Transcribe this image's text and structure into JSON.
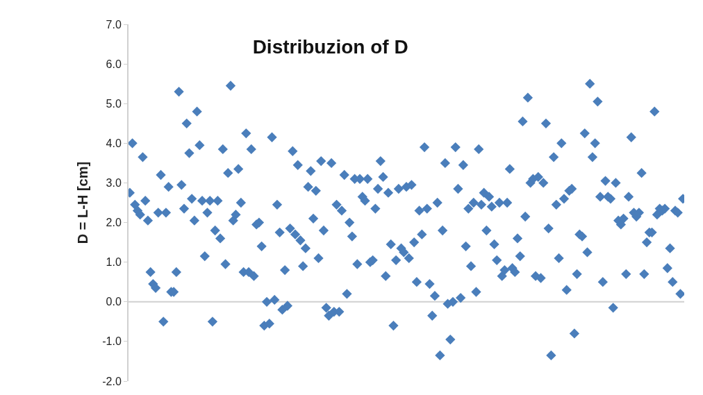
{
  "chart_data": {
    "type": "scatter",
    "title": "Distribuzion of D",
    "ylabel": "D = L-H [cm]",
    "categories": [
      null,
      null,
      null,
      null,
      null,
      null,
      null,
      null,
      null,
      null,
      null,
      null,
      null,
      null,
      null,
      null,
      null,
      null,
      null,
      null,
      null,
      null,
      null,
      null,
      null,
      null,
      null,
      null,
      null,
      null,
      null,
      null,
      null,
      null,
      null,
      null,
      null,
      null,
      null,
      null,
      null,
      null,
      null,
      null,
      null,
      null,
      null,
      null,
      null,
      null,
      null,
      null,
      null,
      null,
      null,
      null,
      null,
      null,
      null,
      null,
      null,
      null,
      null,
      null,
      null,
      null,
      null,
      null,
      null,
      null,
      null,
      null,
      null,
      null,
      null,
      null,
      null,
      null,
      null,
      null,
      null,
      null,
      null,
      null,
      null,
      null,
      null,
      null,
      null,
      null,
      null,
      null,
      null,
      null,
      null,
      null,
      null,
      null,
      null,
      null,
      null,
      null,
      null,
      null,
      null,
      null,
      null,
      null,
      null,
      null,
      null,
      null,
      null,
      null,
      null,
      null,
      null,
      null,
      null,
      null,
      null,
      null,
      null,
      null,
      null,
      null,
      null,
      null,
      null,
      null,
      null,
      null,
      null,
      null,
      null,
      null,
      null,
      null,
      null,
      null,
      null,
      null,
      null,
      null,
      null,
      null,
      null,
      null,
      null,
      null,
      null,
      null,
      null,
      null,
      null,
      null,
      null,
      null,
      null,
      null,
      null,
      null,
      null,
      null,
      null,
      null,
      null,
      null,
      null,
      null,
      null,
      null,
      null,
      null,
      null,
      null,
      null,
      null,
      null,
      null,
      null,
      null,
      null,
      null,
      null,
      null,
      null,
      null,
      null,
      null,
      null,
      null,
      null,
      null,
      null,
      null,
      null,
      null,
      null,
      null,
      null,
      null,
      null,
      null,
      null,
      null,
      null,
      null,
      null,
      null,
      null,
      null,
      null,
      null,
      null
    ],
    "values": [
      2.75,
      4.0,
      2.45,
      2.3,
      2.2,
      3.65,
      2.55,
      2.05,
      0.75,
      0.45,
      0.35,
      2.25,
      3.2,
      -0.5,
      2.25,
      2.9,
      0.25,
      0.25,
      0.75,
      5.3,
      2.95,
      2.35,
      4.5,
      3.75,
      2.6,
      2.05,
      4.8,
      3.95,
      2.55,
      1.15,
      2.25,
      2.55,
      -0.5,
      1.8,
      2.55,
      1.6,
      3.85,
      0.95,
      3.25,
      5.45,
      2.05,
      2.2,
      3.35,
      2.5,
      0.75,
      4.25,
      0.75,
      3.85,
      0.65,
      1.95,
      2.0,
      1.4,
      -0.6,
      0.0,
      -0.55,
      4.15,
      0.05,
      2.45,
      1.75,
      -0.2,
      0.8,
      -0.1,
      1.85,
      3.8,
      1.7,
      3.45,
      1.55,
      0.9,
      1.35,
      2.9,
      3.3,
      2.1,
      2.8,
      1.1,
      3.55,
      1.8,
      -0.15,
      -0.35,
      3.5,
      -0.25,
      2.45,
      -0.25,
      2.3,
      3.2,
      0.2,
      2.0,
      1.65,
      3.1,
      0.95,
      3.1,
      2.65,
      2.55,
      3.1,
      1.0,
      1.05,
      2.35,
      2.85,
      3.55,
      3.15,
      0.65,
      2.75,
      1.45,
      -0.6,
      1.05,
      2.85,
      1.35,
      1.25,
      2.9,
      1.1,
      2.95,
      1.5,
      0.5,
      2.3,
      1.7,
      3.9,
      2.35,
      0.45,
      -0.35,
      0.15,
      2.5,
      -1.35,
      1.8,
      3.5,
      -0.05,
      -0.95,
      0.0,
      3.9,
      2.85,
      0.1,
      3.45,
      1.4,
      2.35,
      0.9,
      2.5,
      0.25,
      3.85,
      2.45,
      2.75,
      1.8,
      2.65,
      2.4,
      1.45,
      1.05,
      2.5,
      0.65,
      0.8,
      2.5,
      3.35,
      0.85,
      0.75,
      1.6,
      1.15,
      4.55,
      2.15,
      5.15,
      3.0,
      3.1,
      0.65,
      3.15,
      0.6,
      3.0,
      4.5,
      1.85,
      -1.35,
      3.65,
      2.45,
      1.1,
      4.0,
      2.6,
      0.3,
      2.8,
      2.85,
      -0.8,
      0.7,
      1.7,
      1.65,
      4.25,
      1.25,
      5.5,
      3.65,
      4.0,
      5.05,
      2.65,
      0.5,
      3.05,
      2.65,
      2.6,
      -0.15,
      3.0,
      2.05,
      1.95,
      2.1,
      0.7,
      2.65,
      4.15,
      2.25,
      2.15,
      2.25,
      3.25,
      0.7,
      1.5,
      1.75,
      1.75,
      4.8,
      2.2,
      2.35,
      2.3,
      2.35,
      0.85,
      1.35,
      0.5,
      2.3,
      2.25,
      0.2,
      2.6
    ],
    "color": "#4a7ebb",
    "marker": "diamond",
    "grid": false,
    "tick_labels": "y",
    "ref_lines": [
      {
        "axis": "y",
        "value": 0,
        "color": "#d0d0d0"
      }
    ],
    "ylim": [
      -2,
      7
    ],
    "yticks": [
      {
        "value": -2,
        "label": "-2.0"
      },
      {
        "value": -1,
        "label": "-1.0"
      },
      {
        "value": 0,
        "label": "0.0"
      },
      {
        "value": 1,
        "label": "1.0"
      },
      {
        "value": 2,
        "label": "2.0"
      },
      {
        "value": 3,
        "label": "3.0"
      },
      {
        "value": 4,
        "label": "4.0"
      },
      {
        "value": 5,
        "label": "5.0"
      },
      {
        "value": 6,
        "label": "6.0"
      },
      {
        "value": 7,
        "label": "7.0"
      }
    ]
  }
}
